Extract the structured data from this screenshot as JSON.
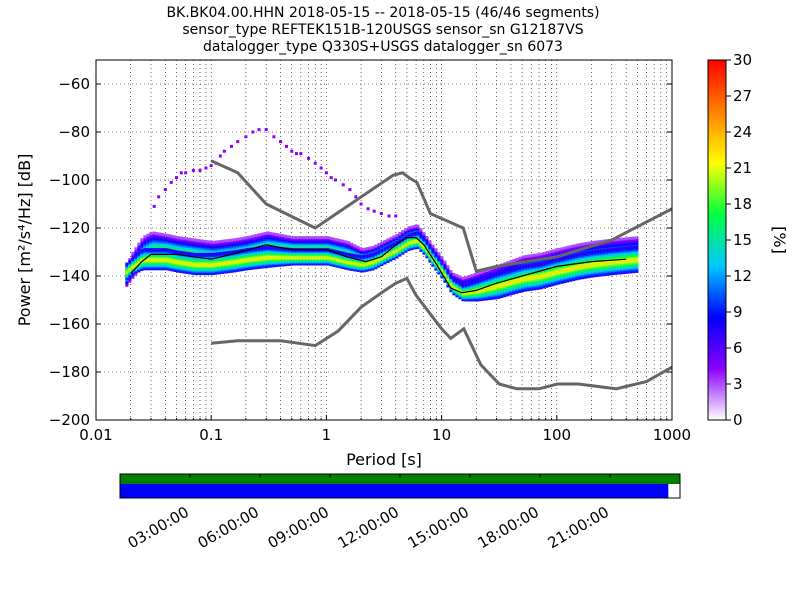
{
  "title": {
    "line1": "BK.BK04.00.HHN   2018-05-15 -- 2018-05-15  (46/46 segments)",
    "line2": "sensor_type REFTEK151B-120USGS sensor_sn G12187VS",
    "line3": "datalogger_type Q330S+USGS datalogger_sn 6073"
  },
  "chart_data": [
    {
      "type": "heatmap",
      "xlabel": "Period [s]",
      "ylabel": "Power [m²/s⁴/Hz] [dB]",
      "x_scale": "log",
      "xlim": [
        0.01,
        1000
      ],
      "ylim": [
        -200,
        -50
      ],
      "x_ticks": [
        {
          "value": 0.01,
          "label": "0.01"
        },
        {
          "value": 0.1,
          "label": "0.1"
        },
        {
          "value": 1,
          "label": "1"
        },
        {
          "value": 10,
          "label": "10"
        },
        {
          "value": 100,
          "label": "100"
        },
        {
          "value": 1000,
          "label": "1000"
        }
      ],
      "y_ticks": [
        {
          "value": -60,
          "label": "−60"
        },
        {
          "value": -80,
          "label": "−80"
        },
        {
          "value": -100,
          "label": "−100"
        },
        {
          "value": -120,
          "label": "−120"
        },
        {
          "value": -140,
          "label": "−140"
        },
        {
          "value": -160,
          "label": "−160"
        },
        {
          "value": -180,
          "label": "−180"
        },
        {
          "value": -200,
          "label": "−200"
        }
      ],
      "grid": true,
      "colorbar": {
        "label": "[%]",
        "range": [
          0,
          30
        ],
        "ticks": [
          {
            "value": 0,
            "label": "0"
          },
          {
            "value": 3,
            "label": "3"
          },
          {
            "value": 6,
            "label": "6"
          },
          {
            "value": 9,
            "label": "9"
          },
          {
            "value": 12,
            "label": "12"
          },
          {
            "value": 15,
            "label": "15"
          },
          {
            "value": 18,
            "label": "18"
          },
          {
            "value": 21,
            "label": "21"
          },
          {
            "value": 24,
            "label": "24"
          },
          {
            "value": 27,
            "label": "27"
          },
          {
            "value": 30,
            "label": "30"
          }
        ],
        "colors": [
          "#ffffff",
          "#8a00ff",
          "#0000ff",
          "#00c8ff",
          "#00ff40",
          "#ffff00",
          "#ff8000",
          "#ff0000"
        ]
      },
      "colors": {
        "noise_model": "#666666",
        "mode_line": "#000000",
        "sparse_scatter": "#8a00ff",
        "grid": "#000000"
      },
      "noise_models": {
        "high": {
          "x": [
            0.1,
            0.17,
            0.3,
            0.8,
            3.8,
            4.6,
            5.2,
            6.1,
            8.0,
            15.4,
            20.0,
            30.0,
            100,
            300,
            1000
          ],
          "y": [
            -92,
            -97,
            -110,
            -120,
            -98,
            -97,
            -99,
            -101,
            -114,
            -120,
            -138,
            -136,
            -132,
            -125,
            -112
          ]
        },
        "low": {
          "x": [
            0.1,
            0.17,
            0.4,
            0.8,
            1.26,
            2.0,
            3.0,
            4.0,
            5.0,
            6.0,
            10.0,
            12.0,
            15.6,
            21.9,
            31.6,
            45.0,
            70.0,
            101.0,
            154.0,
            328.0,
            600.0,
            1000.0
          ],
          "y": [
            -168,
            -167,
            -167,
            -169,
            -163,
            -153,
            -147,
            -143,
            -141,
            -148,
            -162,
            -166,
            -162,
            -177,
            -185,
            -187,
            -187,
            -185,
            -185,
            -187,
            -184,
            -178
          ]
        }
      },
      "mode_curve": {
        "x": [
          0.02,
          0.025,
          0.03,
          0.05,
          0.1,
          0.15,
          0.3,
          0.5,
          1.0,
          1.5,
          2.2,
          3.0,
          4.0,
          5.0,
          6.0,
          7.0,
          9.0,
          12.0,
          15.0,
          20.0,
          30.0,
          50.0,
          100.0,
          200.0,
          400.0
        ],
        "y": [
          -139,
          -134,
          -131,
          -131,
          -133,
          -131,
          -127,
          -129,
          -129,
          -132,
          -134,
          -132,
          -127,
          -124,
          -124,
          -127,
          -135,
          -145,
          -147,
          -146,
          -143,
          -140,
          -136,
          -134,
          -133
        ]
      },
      "density": [
        {
          "x": [
            0.018,
            0.02,
            0.025,
            0.03,
            0.04,
            0.05,
            0.07,
            0.1,
            0.15,
            0.2,
            0.3,
            0.5,
            0.7,
            1.0,
            1.5,
            2.0,
            2.5,
            3.0,
            4.0,
            5.0,
            6.0,
            7.0,
            8.0,
            10.0,
            12.0,
            15.0,
            20.0,
            30.0,
            50.0,
            70.0,
            100.0,
            150.0,
            200.0,
            300.0,
            500.0
          ],
          "y": [
            -140,
            -136,
            -130,
            -128,
            -128,
            -129,
            -130,
            -131,
            -130,
            -129,
            -127,
            -128,
            -128,
            -128,
            -130,
            -132,
            -131,
            -129,
            -126,
            -123,
            -122,
            -126,
            -130,
            -136,
            -142,
            -145,
            -144,
            -142,
            -138,
            -137,
            -135,
            -133,
            -132,
            -131,
            -130
          ],
          "half_width": [
            4,
            5,
            6,
            6,
            5,
            5,
            5,
            5,
            5,
            5,
            5,
            4,
            4,
            4,
            4,
            3,
            3,
            3,
            3,
            3,
            3,
            3,
            3,
            3,
            3,
            4,
            5,
            6,
            6,
            6,
            6,
            6,
            6,
            6,
            6
          ]
        },
        {
          "x": [
            0.018,
            0.02,
            0.025,
            0.03,
            0.04,
            0.05,
            0.07,
            0.1,
            0.15,
            0.2,
            0.3,
            0.5,
            0.7,
            1.0,
            1.5,
            2.0,
            2.5,
            3.0,
            4.0,
            5.0,
            6.0,
            7.0,
            8.0,
            10.0,
            12.0,
            15.0,
            20.0,
            30.0,
            50.0,
            70.0,
            100.0,
            150.0,
            200.0,
            300.0,
            500.0
          ],
          "y": [
            -138,
            -136,
            -133,
            -133,
            -133,
            -134,
            -135,
            -135,
            -134,
            -133,
            -132,
            -132,
            -132,
            -132,
            -134,
            -135,
            -134,
            -132,
            -129,
            -126,
            -125,
            -128,
            -132,
            -138,
            -144,
            -147,
            -146,
            -144,
            -141,
            -140,
            -138,
            -136,
            -135,
            -134,
            -133
          ],
          "half_width": [
            3,
            3,
            4,
            4,
            4,
            4,
            4,
            4,
            4,
            4,
            4,
            3,
            3,
            3,
            3,
            3,
            3,
            3,
            3,
            3,
            3,
            3,
            3,
            3,
            3,
            3,
            4,
            5,
            5,
            5,
            5,
            5,
            5,
            5,
            5
          ]
        }
      ],
      "sparse_scatter": {
        "x": [
          0.032,
          0.035,
          0.04,
          0.045,
          0.05,
          0.055,
          0.06,
          0.07,
          0.08,
          0.09,
          0.1,
          0.11,
          0.12,
          0.13,
          0.15,
          0.17,
          0.2,
          0.23,
          0.26,
          0.3,
          0.35,
          0.4,
          0.45,
          0.5,
          0.55,
          0.6,
          0.7,
          0.8,
          0.9,
          1.0,
          1.1,
          1.2,
          1.4,
          1.6,
          1.8,
          2.0,
          2.3,
          2.6,
          3.0,
          3.5,
          4.0
        ],
        "y": [
          -111,
          -107,
          -104,
          -101,
          -99,
          -97,
          -97,
          -96,
          -96,
          -95,
          -94,
          -93,
          -90,
          -88,
          -86,
          -84,
          -82,
          -80,
          -79,
          -79,
          -82,
          -84,
          -86,
          -88,
          -89,
          -89,
          -91,
          -93,
          -95,
          -97,
          -99,
          -100,
          -102,
          -104,
          -107,
          -110,
          -112,
          -113,
          -114,
          -115,
          -115
        ]
      }
    },
    {
      "type": "timeline",
      "ticks": [
        {
          "value": 3,
          "label": "03:00:00"
        },
        {
          "value": 6,
          "label": "06:00:00"
        },
        {
          "value": 9,
          "label": "09:00:00"
        },
        {
          "value": 12,
          "label": "12:00:00"
        },
        {
          "value": 15,
          "label": "15:00:00"
        },
        {
          "value": 18,
          "label": "18:00:00"
        },
        {
          "value": 21,
          "label": "21:00:00"
        }
      ],
      "range_hours": [
        0,
        24
      ],
      "bars": [
        {
          "from": 0,
          "to": 24,
          "color": "#008000"
        },
        {
          "from": 0,
          "to": 23.5,
          "color": "#0000ff"
        }
      ]
    }
  ]
}
